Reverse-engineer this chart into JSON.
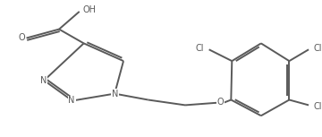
{
  "bg_color": "#ffffff",
  "line_color": "#5a5a5a",
  "text_color": "#5a5a5a",
  "font_size": 7.0,
  "line_width": 1.4,
  "figsize": [
    3.6,
    1.53
  ],
  "dpi": 100,
  "xlim": [
    0,
    10
  ],
  "ylim": [
    0,
    4.25
  ]
}
